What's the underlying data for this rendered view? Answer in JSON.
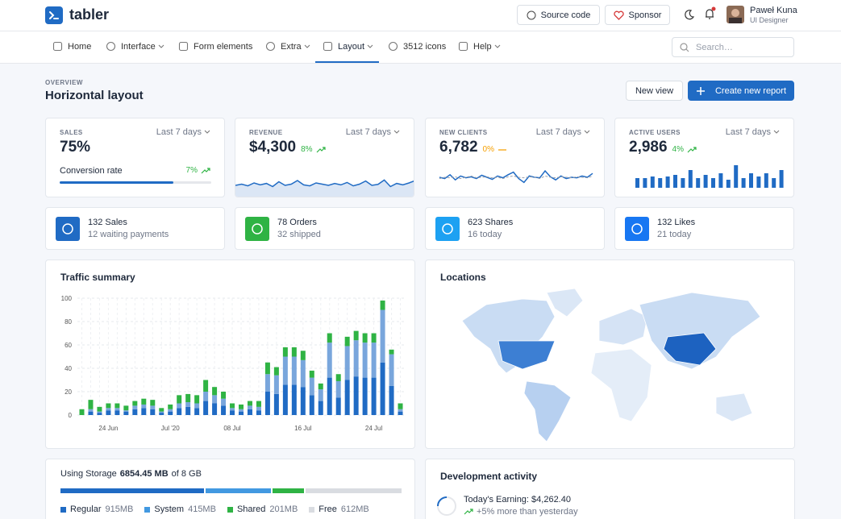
{
  "header": {
    "brand": "tabler",
    "source_button": "Source code",
    "sponsor_button": "Sponsor",
    "user_name": "Paweł Kuna",
    "user_role": "UI Designer"
  },
  "nav": {
    "items": [
      "Home",
      "Interface",
      "Form elements",
      "Extra",
      "Layout",
      "3512 icons",
      "Help"
    ],
    "search_placeholder": "Search…"
  },
  "page": {
    "pretitle": "OVERVIEW",
    "title": "Horizontal layout",
    "buttons": [
      "New view",
      "Create new report"
    ]
  },
  "stats": [
    {
      "label": "SALES",
      "period": "Last 7 days",
      "value": 75,
      "value_label": "75%",
      "caption": "Conversion rate",
      "change": "7%",
      "trend": "up"
    },
    {
      "label": "REVENUE",
      "period": "Last 7 days",
      "value_label": "$4,300",
      "change": "8%",
      "trend": "up",
      "kind": "area",
      "series": [
        {
          "values": [
            40,
            45,
            38,
            50,
            42,
            48,
            35,
            55,
            40,
            45,
            60,
            42,
            38,
            50,
            45,
            40,
            48,
            42,
            52,
            38,
            45,
            58,
            40,
            44,
            62,
            35,
            48,
            42,
            50,
            60
          ]
        }
      ]
    },
    {
      "label": "NEW CLIENTS",
      "period": "Last 7 days",
      "value_label": "6,782",
      "change": "0%",
      "trend": "flat",
      "kind": "line",
      "series": [
        {
          "values": [
            50,
            45,
            60,
            40,
            55,
            48,
            52,
            45,
            58,
            50,
            42,
            55,
            48,
            60,
            70,
            45,
            30,
            55,
            50,
            48,
            75,
            52,
            40,
            55,
            45,
            50,
            48,
            55,
            50,
            65
          ]
        },
        {
          "values": [
            45,
            50,
            48,
            52,
            45,
            50,
            55,
            48,
            50,
            52,
            48,
            50,
            45,
            52,
            55,
            50,
            48,
            52,
            50,
            45,
            55,
            50,
            48,
            52,
            50,
            48,
            52,
            50,
            48,
            55
          ]
        }
      ]
    },
    {
      "label": "ACTIVE USERS",
      "period": "Last 7 days",
      "value_label": "2,986",
      "change": "4%",
      "trend": "up",
      "kind": "bars",
      "series": [
        {
          "values": [
            12,
            12,
            14,
            12,
            14,
            16,
            12,
            22,
            12,
            16,
            12,
            18,
            10,
            28,
            12,
            18,
            14,
            18,
            12,
            22
          ]
        }
      ]
    }
  ],
  "mini_cards": [
    {
      "title": "132 Sales",
      "subtitle": "12 waiting payments",
      "color": "#206bc4"
    },
    {
      "title": "78 Orders",
      "subtitle": "32 shipped",
      "color": "#2fb344"
    },
    {
      "title": "623 Shares",
      "subtitle": "16 today",
      "color": "#1da1f2"
    },
    {
      "title": "132 Likes",
      "subtitle": "21 today",
      "color": "#1877f2"
    }
  ],
  "chart_data": {
    "type": "bar",
    "stacked": true,
    "title": "Traffic summary",
    "categories": [
      null,
      null,
      null,
      "24 Jun",
      null,
      null,
      null,
      null,
      null,
      null,
      "Jul '20",
      null,
      null,
      null,
      null,
      null,
      null,
      "08 Jul",
      null,
      null,
      null,
      null,
      null,
      null,
      null,
      "16 Jul",
      null,
      null,
      null,
      null,
      null,
      null,
      null,
      "24 Jul",
      null,
      null,
      null
    ],
    "series": [
      {
        "color": "#206bc4",
        "values": [
          0,
          3,
          2,
          4,
          4,
          3,
          5,
          6,
          5,
          2,
          3,
          6,
          7,
          6,
          12,
          10,
          8,
          4,
          3,
          5,
          4,
          20,
          18,
          26,
          26,
          24,
          17,
          12,
          32,
          15,
          30,
          33,
          32,
          32,
          45,
          25,
          3
        ]
      },
      {
        "color": "#79a6dc",
        "values": [
          0,
          2,
          1,
          2,
          2,
          1,
          3,
          3,
          3,
          1,
          2,
          4,
          4,
          4,
          8,
          7,
          6,
          2,
          2,
          3,
          3,
          15,
          16,
          24,
          24,
          23,
          15,
          10,
          30,
          14,
          29,
          31,
          30,
          30,
          45,
          27,
          2
        ]
      },
      {
        "color": "#2fb344",
        "values": [
          5,
          8,
          4,
          4,
          4,
          4,
          4,
          5,
          5,
          3,
          4,
          7,
          7,
          7,
          10,
          7,
          6,
          4,
          4,
          4,
          5,
          10,
          7,
          8,
          8,
          8,
          6,
          5,
          8,
          6,
          8,
          8,
          8,
          8,
          8,
          4,
          5
        ]
      }
    ],
    "ylim": [
      0,
      100
    ],
    "yticks": [
      0,
      20,
      40,
      60,
      80,
      100
    ],
    "grid": true
  },
  "locations": {
    "title": "Locations"
  },
  "storage": {
    "prefix": "Using Storage",
    "used": "6854.45 MB",
    "suffix": "of 8 GB",
    "segments": [
      {
        "name": "Regular",
        "value": 915,
        "label": "915MB",
        "color": "#206bc4"
      },
      {
        "name": "System",
        "value": 415,
        "label": "415MB",
        "color": "#4299e1"
      },
      {
        "name": "Shared",
        "value": 201,
        "label": "201MB",
        "color": "#2fb344"
      },
      {
        "name": "Free",
        "value": 612,
        "label": "612MB",
        "color": "#d9dce1"
      }
    ]
  },
  "activity": {
    "title": "Development activity",
    "earning": "Today's Earning: $4,262.40",
    "change": "+5% more than yesterday"
  }
}
